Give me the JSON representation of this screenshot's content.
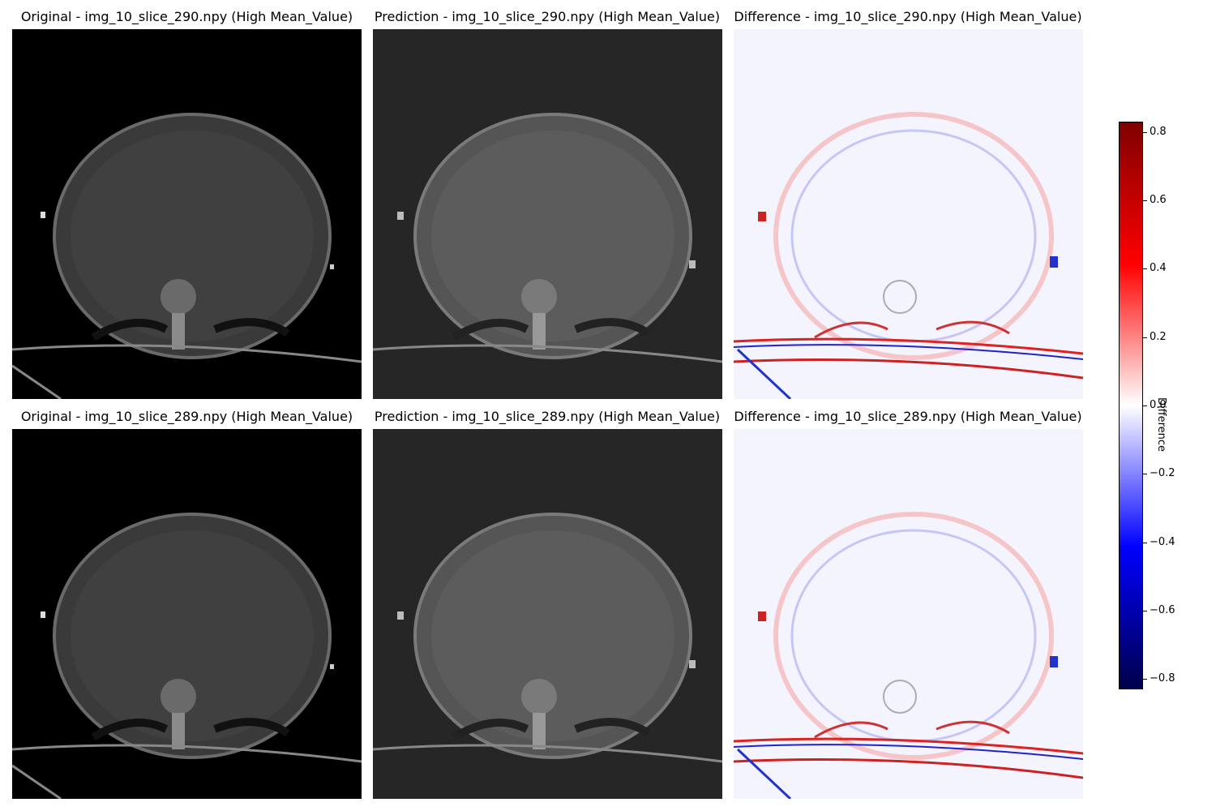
{
  "rows": [
    {
      "titles": {
        "original": "Original - img_10_slice_290.npy (High Mean_Value)",
        "prediction": "Prediction - img_10_slice_290.npy (High Mean_Value)",
        "difference": "Difference - img_10_slice_290.npy (High Mean_Value)"
      }
    },
    {
      "titles": {
        "original": "Original - img_10_slice_289.npy (High Mean_Value)",
        "prediction": "Prediction - img_10_slice_289.npy (High Mean_Value)",
        "difference": "Difference - img_10_slice_289.npy (High Mean_Value)"
      }
    }
  ],
  "colorbar": {
    "label": "Difference",
    "colormap": "seismic",
    "range": [
      -0.83,
      0.83
    ],
    "ticks": [
      "0.8",
      "0.6",
      "0.4",
      "0.2",
      "0.0",
      "−0.2",
      "−0.4",
      "−0.6",
      "−0.8"
    ],
    "tick_values": [
      0.8,
      0.6,
      0.4,
      0.2,
      0.0,
      -0.2,
      -0.4,
      -0.6,
      -0.8
    ]
  },
  "colors": {
    "original_bg": "#000000",
    "prediction_bg": "#262626",
    "difference_bg": "#f4f4ff"
  }
}
